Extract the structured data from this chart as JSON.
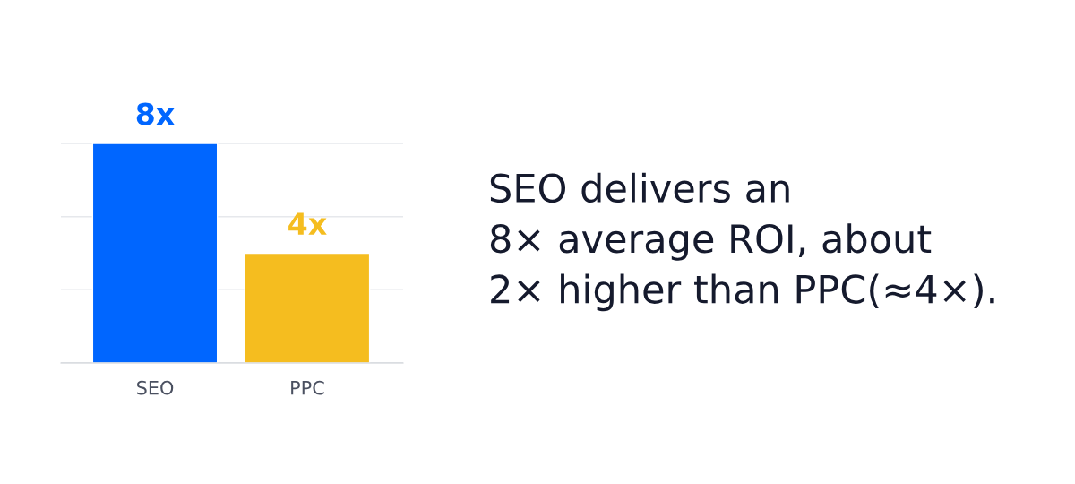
{
  "chart_data": {
    "type": "bar",
    "categories": [
      "SEO",
      "PPC"
    ],
    "values": [
      8,
      4
    ],
    "colors": [
      "#0066ff",
      "#f5bd1f"
    ],
    "value_labels": [
      "8x",
      "4x"
    ],
    "ylim": [
      0,
      8
    ],
    "yticks": [
      {
        "value": 0,
        "label": null
      },
      {
        "value": 2.67,
        "label": null
      },
      {
        "value": 5.33,
        "label": null
      },
      {
        "value": 8,
        "label": null
      }
    ],
    "grid": "y",
    "annotations": [
      "SEO delivers an\n8× average ROI, about\n2× higher than PPC(≈4×)."
    ]
  }
}
